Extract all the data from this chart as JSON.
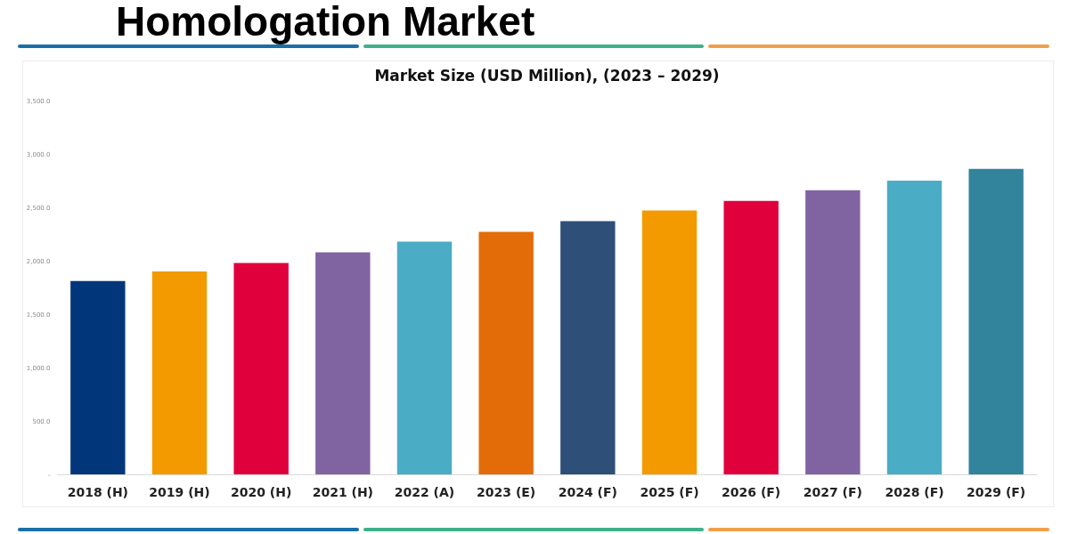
{
  "chart_data": {
    "type": "bar",
    "title": "Homologation Market",
    "subtitle": "Market Size (USD Million), (2023 – 2029)",
    "categories": [
      "2018 (H)",
      "2019 (H)",
      "2020 (H)",
      "2021 (H)",
      "2022 (A)",
      "2023 (E)",
      "2024 (F)",
      "2025 (F)",
      "2026 (F)",
      "2027 (F)",
      "2028 (F)",
      "2029 (F)"
    ],
    "values": [
      1810,
      1900,
      1980,
      2080,
      2180,
      2270,
      2370,
      2470,
      2560,
      2660,
      2750,
      2860
    ],
    "colors": [
      "#02367a",
      "#f29a00",
      "#e0003c",
      "#8064a2",
      "#4bacc6",
      "#e36c09",
      "#2d4f78",
      "#f29a00",
      "#e0003c",
      "#8064a2",
      "#4bacc6",
      "#31849b"
    ],
    "ylim": [
      0,
      3500
    ],
    "yticks": [
      {
        "value": 0,
        "label": "-"
      },
      {
        "value": 500,
        "label": "500.0"
      },
      {
        "value": 1000,
        "label": "1,000.0"
      },
      {
        "value": 1500,
        "label": "1,500.0"
      },
      {
        "value": 2000,
        "label": "2,000.0"
      },
      {
        "value": 2500,
        "label": "2,500.0"
      },
      {
        "value": 3000,
        "label": "3,000.0"
      },
      {
        "value": 3500,
        "label": "3,500.0"
      }
    ],
    "grid": false,
    "legend": false
  }
}
